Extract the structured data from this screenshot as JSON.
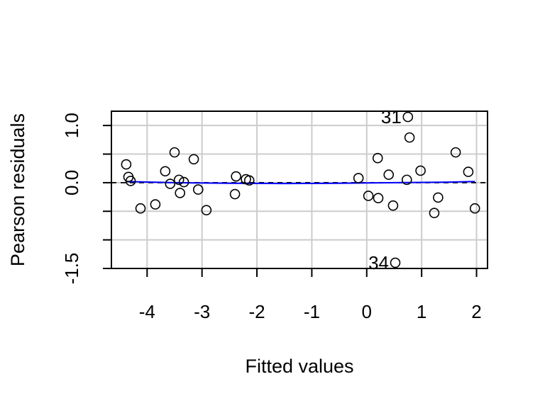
{
  "chart_data": {
    "type": "scatter",
    "title": "",
    "xlabel": "Fitted values",
    "ylabel": "Pearson residuals",
    "xlim": [
      -4.65,
      2.2
    ],
    "ylim": [
      -1.5,
      1.25
    ],
    "x_ticks": [
      -4,
      -3,
      -2,
      -1,
      0,
      1,
      2
    ],
    "x_tick_labels": [
      "-4",
      "-3",
      "-2",
      "-1",
      "0",
      "1",
      "2"
    ],
    "y_ticks": [
      -1.5,
      -1.0,
      -0.5,
      0.0,
      0.5,
      1.0
    ],
    "y_tick_labels": [
      "-1.5",
      "",
      "",
      "0.0",
      "",
      "1.0"
    ],
    "grid": true,
    "reference_line": {
      "y": 0,
      "style": "dashed",
      "color": "#000000"
    },
    "points": [
      {
        "x": -4.38,
        "y": 0.32
      },
      {
        "x": -4.34,
        "y": 0.1
      },
      {
        "x": -4.3,
        "y": 0.03
      },
      {
        "x": -4.12,
        "y": -0.45
      },
      {
        "x": -3.85,
        "y": -0.38
      },
      {
        "x": -3.67,
        "y": 0.2
      },
      {
        "x": -3.58,
        "y": -0.02
      },
      {
        "x": -3.5,
        "y": 0.53
      },
      {
        "x": -3.42,
        "y": 0.05
      },
      {
        "x": -3.4,
        "y": -0.18
      },
      {
        "x": -3.33,
        "y": 0.01
      },
      {
        "x": -3.15,
        "y": 0.41
      },
      {
        "x": -3.07,
        "y": -0.12
      },
      {
        "x": -2.92,
        "y": -0.48
      },
      {
        "x": -2.4,
        "y": -0.2
      },
      {
        "x": -2.38,
        "y": 0.11
      },
      {
        "x": -2.2,
        "y": 0.06
      },
      {
        "x": -2.14,
        "y": 0.04
      },
      {
        "x": -0.15,
        "y": 0.08
      },
      {
        "x": 0.03,
        "y": -0.23
      },
      {
        "x": 0.2,
        "y": 0.43
      },
      {
        "x": 0.21,
        "y": -0.27
      },
      {
        "x": 0.4,
        "y": 0.14
      },
      {
        "x": 0.48,
        "y": -0.4
      },
      {
        "x": 0.52,
        "y": -1.4,
        "label": "34"
      },
      {
        "x": 0.73,
        "y": 0.05
      },
      {
        "x": 0.75,
        "y": 1.15,
        "label": "31"
      },
      {
        "x": 0.78,
        "y": 0.79
      },
      {
        "x": 0.98,
        "y": 0.21
      },
      {
        "x": 1.23,
        "y": -0.53
      },
      {
        "x": 1.3,
        "y": -0.26
      },
      {
        "x": 1.62,
        "y": 0.53
      },
      {
        "x": 1.85,
        "y": 0.19
      },
      {
        "x": 1.97,
        "y": -0.45
      }
    ],
    "smoother": {
      "color": "#0000ff",
      "x": [
        -4.38,
        -3.5,
        -2.5,
        -1.5,
        -0.5,
        0.5,
        1.5,
        1.97
      ],
      "y": [
        0.02,
        0.0,
        -0.01,
        -0.015,
        -0.01,
        0.0,
        0.01,
        0.02
      ]
    },
    "colors": {
      "point_stroke": "#000000",
      "grid": "#cccccc",
      "frame": "#000000",
      "smoother": "#0000ff"
    }
  }
}
